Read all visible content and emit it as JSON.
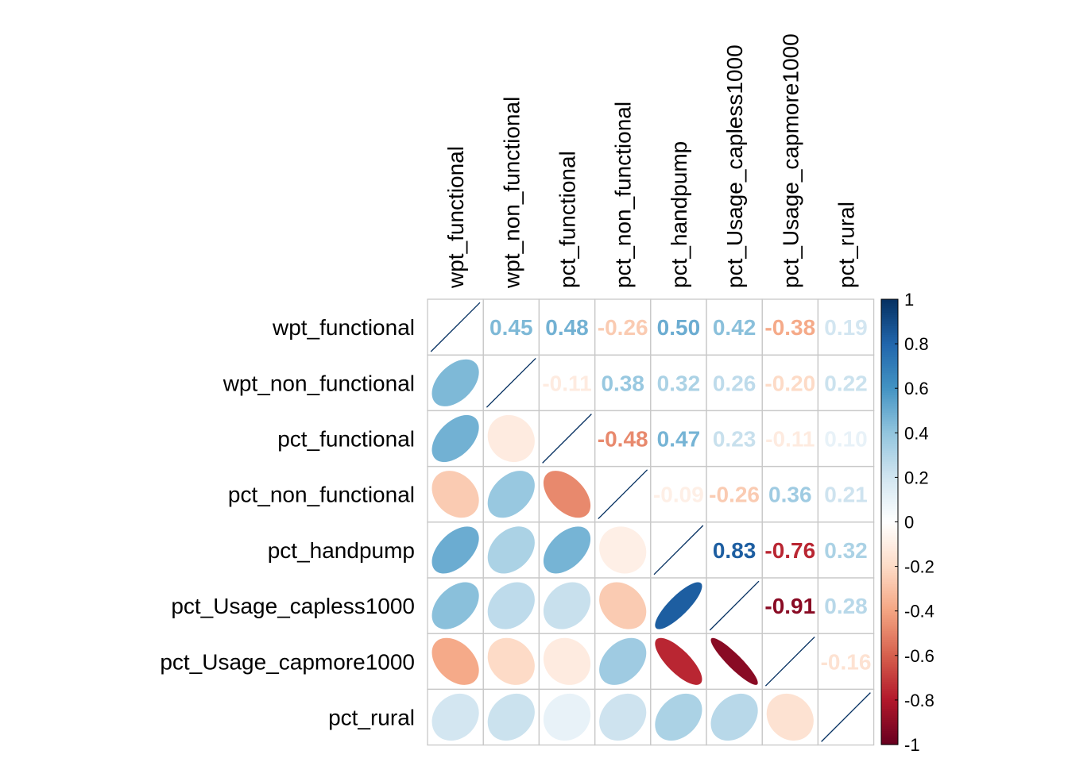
{
  "chart_data": {
    "type": "heatmap",
    "variables": [
      "wpt_functional",
      "wpt_non_functional",
      "pct_functional",
      "pct_non_functional",
      "pct_handpump",
      "pct_Usage_capless1000",
      "pct_Usage_capmore1000",
      "pct_rural"
    ],
    "matrix": [
      [
        1.0,
        0.45,
        0.48,
        -0.26,
        0.5,
        0.42,
        -0.38,
        0.19
      ],
      [
        0.45,
        1.0,
        -0.11,
        0.38,
        0.32,
        0.26,
        -0.2,
        0.22
      ],
      [
        0.48,
        -0.11,
        1.0,
        -0.48,
        0.47,
        0.23,
        -0.11,
        0.1
      ],
      [
        -0.26,
        0.38,
        -0.48,
        1.0,
        -0.09,
        -0.26,
        0.36,
        0.21
      ],
      [
        0.5,
        0.32,
        0.47,
        -0.09,
        1.0,
        0.83,
        -0.76,
        0.32
      ],
      [
        0.42,
        0.26,
        0.23,
        -0.26,
        0.83,
        1.0,
        -0.91,
        0.28
      ],
      [
        -0.38,
        -0.2,
        -0.11,
        0.36,
        -0.76,
        -0.91,
        1.0,
        -0.16
      ],
      [
        0.19,
        0.22,
        0.1,
        0.21,
        0.32,
        0.28,
        -0.16,
        1.0
      ]
    ],
    "upper_labels": [
      [
        "",
        "0.45",
        "0.48",
        "-0.26",
        "0.50",
        "0.42",
        "-0.38",
        "0.19"
      ],
      [
        "",
        "",
        "-0.11",
        "0.38",
        "0.32",
        "0.26",
        "-0.20",
        "0.22"
      ],
      [
        "",
        "",
        "",
        "-0.48",
        "0.47",
        "0.23",
        "-0.11",
        "0.10"
      ],
      [
        "",
        "",
        "",
        "",
        "-0.09",
        "-0.26",
        "0.36",
        "0.21"
      ],
      [
        "",
        "",
        "",
        "",
        "",
        "0.83",
        "-0.76",
        "0.32"
      ],
      [
        "",
        "",
        "",
        "",
        "",
        "",
        "-0.91",
        "0.28"
      ],
      [
        "",
        "",
        "",
        "",
        "",
        "",
        "",
        "-0.16"
      ],
      [
        "",
        "",
        "",
        "",
        "",
        "",
        "",
        ""
      ]
    ],
    "lower_method": "ellipse",
    "upper_method": "number",
    "colorbar": {
      "ticks": [
        "1",
        "0.8",
        "0.6",
        "0.4",
        "0.2",
        "0",
        "-0.2",
        "-0.4",
        "-0.6",
        "-0.8",
        "-1"
      ],
      "range": [
        -1,
        1
      ]
    },
    "palette": [
      "#67001F",
      "#B2182B",
      "#D6604D",
      "#F4A582",
      "#FDDBC7",
      "#FFFFFF",
      "#D1E5F0",
      "#92C5DE",
      "#4393C3",
      "#2166AC",
      "#053061"
    ],
    "grid_color": "#C8C8C8",
    "diagonal_line_color": "#053061"
  }
}
